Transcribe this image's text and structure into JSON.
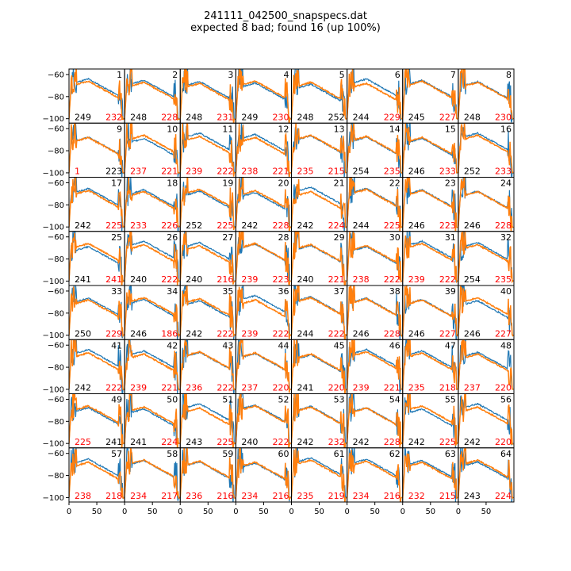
{
  "title": {
    "line1": "241111_042500_snapspecs.dat",
    "line2": "expected 8 bad; found 16 (up 100%)"
  },
  "colors": {
    "series_a": "#1f77b4",
    "series_b": "#ff7f0e",
    "label_ok": "#000000",
    "label_bad": "#ff0000"
  },
  "chart_data": {
    "type": "line",
    "grid": {
      "rows": 8,
      "cols": 8
    },
    "xlim": [
      0,
      100
    ],
    "ylim": [
      -104,
      -55
    ],
    "xticks": [
      0,
      50
    ],
    "yticks": [
      -60,
      -80,
      -100
    ],
    "panels": [
      {
        "id": "1",
        "left": "249",
        "right": "232",
        "lc": "k",
        "rc": "r"
      },
      {
        "id": "2",
        "left": "248",
        "right": "228",
        "lc": "k",
        "rc": "r"
      },
      {
        "id": "3",
        "left": "248",
        "right": "231",
        "lc": "k",
        "rc": "r"
      },
      {
        "id": "4",
        "left": "249",
        "right": "230",
        "lc": "k",
        "rc": "r"
      },
      {
        "id": "5",
        "left": "248",
        "right": "252",
        "lc": "k",
        "rc": "k"
      },
      {
        "id": "6",
        "left": "244",
        "right": "229",
        "lc": "k",
        "rc": "r"
      },
      {
        "id": "7",
        "left": "245",
        "right": "227",
        "lc": "k",
        "rc": "r"
      },
      {
        "id": "8",
        "left": "248",
        "right": "230",
        "lc": "k",
        "rc": "r"
      },
      {
        "id": "9",
        "left": "1",
        "right": "223",
        "lc": "r",
        "rc": "k"
      },
      {
        "id": "10",
        "left": "237",
        "right": "221",
        "lc": "r",
        "rc": "r"
      },
      {
        "id": "11",
        "left": "239",
        "right": "222",
        "lc": "r",
        "rc": "r"
      },
      {
        "id": "12",
        "left": "238",
        "right": "221",
        "lc": "r",
        "rc": "r"
      },
      {
        "id": "13",
        "left": "235",
        "right": "215",
        "lc": "r",
        "rc": "r"
      },
      {
        "id": "14",
        "left": "254",
        "right": "235",
        "lc": "k",
        "rc": "r"
      },
      {
        "id": "15",
        "left": "246",
        "right": "233",
        "lc": "k",
        "rc": "r"
      },
      {
        "id": "16",
        "left": "252",
        "right": "233",
        "lc": "k",
        "rc": "r"
      },
      {
        "id": "17",
        "left": "242",
        "right": "225",
        "lc": "k",
        "rc": "r"
      },
      {
        "id": "18",
        "left": "233",
        "right": "226",
        "lc": "r",
        "rc": "r"
      },
      {
        "id": "19",
        "left": "252",
        "right": "225",
        "lc": "k",
        "rc": "r"
      },
      {
        "id": "20",
        "left": "242",
        "right": "228",
        "lc": "k",
        "rc": "r"
      },
      {
        "id": "21",
        "left": "242",
        "right": "224",
        "lc": "k",
        "rc": "r"
      },
      {
        "id": "22",
        "left": "244",
        "right": "225",
        "lc": "k",
        "rc": "r"
      },
      {
        "id": "23",
        "left": "246",
        "right": "223",
        "lc": "k",
        "rc": "r"
      },
      {
        "id": "24",
        "left": "246",
        "right": "228",
        "lc": "k",
        "rc": "r"
      },
      {
        "id": "25",
        "left": "241",
        "right": "241",
        "lc": "k",
        "rc": "r"
      },
      {
        "id": "26",
        "left": "240",
        "right": "222",
        "lc": "k",
        "rc": "r"
      },
      {
        "id": "27",
        "left": "240",
        "right": "216",
        "lc": "k",
        "rc": "r"
      },
      {
        "id": "28",
        "left": "239",
        "right": "223",
        "lc": "r",
        "rc": "r"
      },
      {
        "id": "29",
        "left": "240",
        "right": "221",
        "lc": "k",
        "rc": "r"
      },
      {
        "id": "30",
        "left": "238",
        "right": "222",
        "lc": "r",
        "rc": "r"
      },
      {
        "id": "31",
        "left": "239",
        "right": "222",
        "lc": "r",
        "rc": "r"
      },
      {
        "id": "32",
        "left": "254",
        "right": "235",
        "lc": "k",
        "rc": "r"
      },
      {
        "id": "33",
        "left": "250",
        "right": "229",
        "lc": "k",
        "rc": "r"
      },
      {
        "id": "34",
        "left": "246",
        "right": "186",
        "lc": "k",
        "rc": "r"
      },
      {
        "id": "35",
        "left": "242",
        "right": "222",
        "lc": "k",
        "rc": "r"
      },
      {
        "id": "36",
        "left": "239",
        "right": "222",
        "lc": "r",
        "rc": "r"
      },
      {
        "id": "37",
        "left": "244",
        "right": "222",
        "lc": "k",
        "rc": "r"
      },
      {
        "id": "38",
        "left": "246",
        "right": "228",
        "lc": "k",
        "rc": "r"
      },
      {
        "id": "39",
        "left": "246",
        "right": "227",
        "lc": "k",
        "rc": "r"
      },
      {
        "id": "40",
        "left": "246",
        "right": "227",
        "lc": "k",
        "rc": "r"
      },
      {
        "id": "41",
        "left": "242",
        "right": "222",
        "lc": "k",
        "rc": "r"
      },
      {
        "id": "42",
        "left": "239",
        "right": "221",
        "lc": "r",
        "rc": "r"
      },
      {
        "id": "43",
        "left": "236",
        "right": "222",
        "lc": "r",
        "rc": "r"
      },
      {
        "id": "44",
        "left": "237",
        "right": "220",
        "lc": "r",
        "rc": "r"
      },
      {
        "id": "45",
        "left": "241",
        "right": "220",
        "lc": "k",
        "rc": "r"
      },
      {
        "id": "46",
        "left": "239",
        "right": "221",
        "lc": "r",
        "rc": "r"
      },
      {
        "id": "47",
        "left": "235",
        "right": "218",
        "lc": "r",
        "rc": "r"
      },
      {
        "id": "48",
        "left": "237",
        "right": "220",
        "lc": "r",
        "rc": "r"
      },
      {
        "id": "49",
        "left": "225",
        "right": "241",
        "lc": "r",
        "rc": "k"
      },
      {
        "id": "50",
        "left": "241",
        "right": "224",
        "lc": "k",
        "rc": "r"
      },
      {
        "id": "51",
        "left": "243",
        "right": "225",
        "lc": "k",
        "rc": "r"
      },
      {
        "id": "52",
        "left": "240",
        "right": "222",
        "lc": "k",
        "rc": "r"
      },
      {
        "id": "53",
        "left": "242",
        "right": "232",
        "lc": "k",
        "rc": "r"
      },
      {
        "id": "54",
        "left": "242",
        "right": "228",
        "lc": "k",
        "rc": "r"
      },
      {
        "id": "55",
        "left": "242",
        "right": "225",
        "lc": "k",
        "rc": "r"
      },
      {
        "id": "56",
        "left": "242",
        "right": "220",
        "lc": "k",
        "rc": "r"
      },
      {
        "id": "57",
        "left": "238",
        "right": "218",
        "lc": "r",
        "rc": "r"
      },
      {
        "id": "58",
        "left": "234",
        "right": "217",
        "lc": "r",
        "rc": "r"
      },
      {
        "id": "59",
        "left": "236",
        "right": "216",
        "lc": "r",
        "rc": "r"
      },
      {
        "id": "60",
        "left": "234",
        "right": "216",
        "lc": "r",
        "rc": "r"
      },
      {
        "id": "61",
        "left": "235",
        "right": "219",
        "lc": "r",
        "rc": "r"
      },
      {
        "id": "62",
        "left": "234",
        "right": "216",
        "lc": "r",
        "rc": "r"
      },
      {
        "id": "63",
        "left": "232",
        "right": "215",
        "lc": "r",
        "rc": "r"
      },
      {
        "id": "64",
        "left": "243",
        "right": "224",
        "lc": "k",
        "rc": "r"
      }
    ]
  }
}
